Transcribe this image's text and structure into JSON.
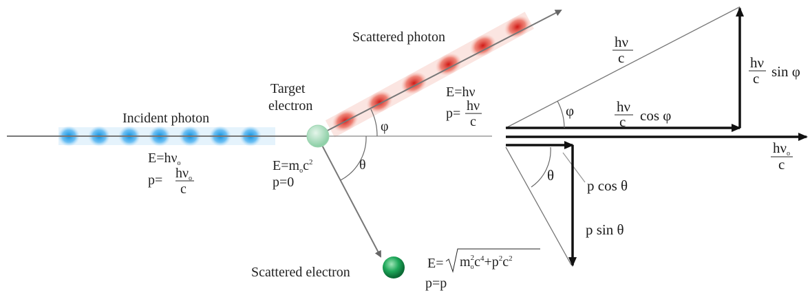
{
  "labels": {
    "incident_photon": "Incident photon",
    "target_electron_1": "Target",
    "target_electron_2": "electron",
    "scattered_photon": "Scattered photon",
    "scattered_electron": "Scattered electron",
    "phi": "φ",
    "theta": "θ"
  },
  "incident": {
    "E_prefix": "E=hν",
    "E_sub": "o",
    "p_prefix": "p=",
    "frac_num": "hν",
    "frac_num_sub": "o",
    "frac_den": "c"
  },
  "target": {
    "E_prefix": "E=m",
    "E_sub": "o",
    "E_mid": "c",
    "E_sup": "2",
    "p": "p=0"
  },
  "scattered_photon_eq": {
    "E": "E=hν",
    "p_prefix": "p=",
    "frac_num": "hν",
    "frac_den": "c"
  },
  "scattered_electron_eq": {
    "E_prefix": "E=",
    "root_m": "m",
    "root_m_sub": "o",
    "root_m_sup": "2",
    "root_c1": "c",
    "root_c1_sup": "4",
    "root_plus_p": "+p",
    "root_p_sup": "2",
    "root_c2": "c",
    "root_c2_sup": "2",
    "p": "p=p"
  },
  "vector_diagram": {
    "hyp_num": "hν",
    "hyp_den": "c",
    "sin_num": "hν",
    "sin_den": "c",
    "sin_text": "sin φ",
    "cos_num": "hν",
    "cos_den": "c",
    "cos_text": "cos φ",
    "phi": "φ",
    "incident_num": "hν",
    "incident_num_sub": "o",
    "incident_den": "c",
    "theta": "θ",
    "p_cos": "p cos θ",
    "p_sin": "p sin θ"
  },
  "colors": {
    "incident_wave": "#1e9be0",
    "scattered_wave": "#d8231f",
    "electron": "#1fa85a",
    "line": "#555555",
    "arrow_dark": "#111111"
  }
}
